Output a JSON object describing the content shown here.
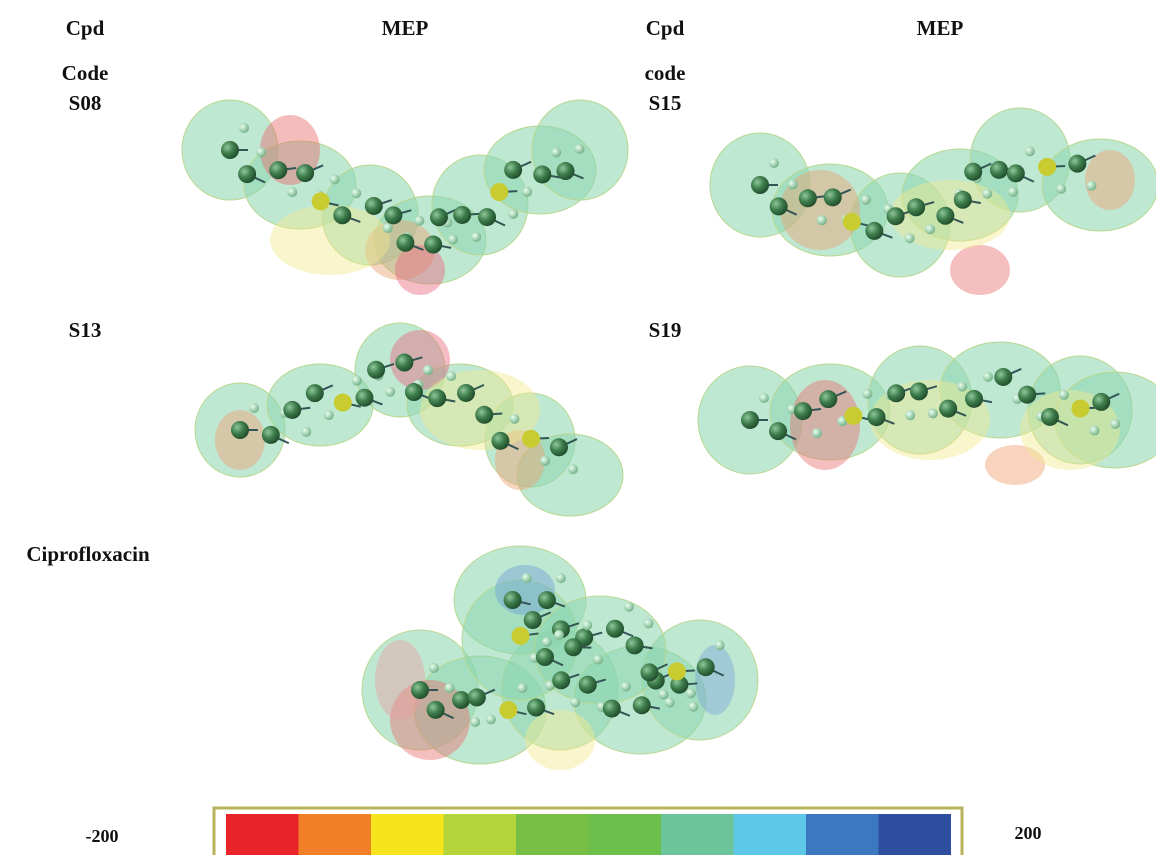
{
  "header": {
    "columns": [
      "Cpd",
      "MEP",
      "Cpd",
      "MEP"
    ],
    "code_labels": [
      "Code",
      "code"
    ]
  },
  "compounds": [
    {
      "label": "S08"
    },
    {
      "label": "S15"
    },
    {
      "label": "S13"
    },
    {
      "label": "S19"
    },
    {
      "label": "Ciprofloxacin"
    }
  ],
  "color_scale": {
    "min": -200,
    "max": 200
  }
}
